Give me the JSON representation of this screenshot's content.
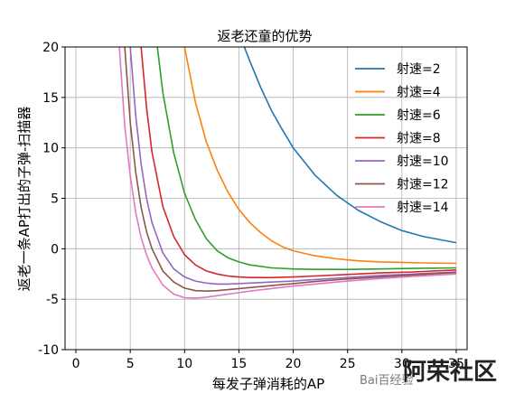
{
  "chart_data": {
    "type": "line",
    "title": "返老还童的优势",
    "xlabel": "每发子弹消耗的AP",
    "ylabel": "返老一条AP打出的子弹-扫描器",
    "xlim": [
      -1,
      36
    ],
    "ylim": [
      -10,
      20
    ],
    "xticks": [
      0,
      5,
      10,
      15,
      20,
      25,
      30,
      35
    ],
    "yticks": [
      -10,
      -5,
      0,
      5,
      10,
      15,
      20
    ],
    "grid": true,
    "legend_position": "top-right",
    "series": [
      {
        "name": "射速=2",
        "color": "#1f77b4",
        "x": [
          15.5,
          16,
          17,
          18,
          19,
          20,
          22,
          24,
          26,
          28,
          30,
          32,
          35
        ],
        "y": [
          20.0,
          18.6,
          16.0,
          13.7,
          11.8,
          10.0,
          7.3,
          5.3,
          3.8,
          2.7,
          1.8,
          1.2,
          0.6
        ]
      },
      {
        "name": "射速=4",
        "color": "#ff7f0e",
        "x": [
          10,
          11,
          12,
          13,
          14,
          15,
          16,
          17,
          18,
          19,
          20,
          22,
          24,
          26,
          28,
          30,
          32,
          35
        ],
        "y": [
          20.0,
          14.5,
          10.6,
          7.8,
          5.6,
          3.9,
          2.6,
          1.6,
          0.8,
          0.2,
          -0.2,
          -0.7,
          -1.0,
          -1.2,
          -1.3,
          -1.35,
          -1.4,
          -1.45
        ]
      },
      {
        "name": "射速=6",
        "color": "#2ca02c",
        "x": [
          7.5,
          8,
          9,
          10,
          11,
          12,
          13,
          14,
          15,
          16,
          18,
          20,
          22,
          25,
          28,
          31,
          35
        ],
        "y": [
          20.0,
          15.5,
          9.5,
          5.5,
          2.9,
          1.0,
          -0.2,
          -0.9,
          -1.3,
          -1.6,
          -1.9,
          -2.0,
          -2.05,
          -2.05,
          -2.0,
          -1.95,
          -1.9
        ]
      },
      {
        "name": "射速=8",
        "color": "#d62728",
        "x": [
          6,
          6.5,
          7,
          8,
          9,
          10,
          11,
          12,
          13,
          14,
          15,
          16,
          18,
          20,
          22,
          25,
          28,
          31,
          35
        ],
        "y": [
          20.0,
          14.0,
          9.6,
          4.2,
          1.2,
          -0.6,
          -1.6,
          -2.2,
          -2.5,
          -2.7,
          -2.8,
          -2.85,
          -2.85,
          -2.8,
          -2.7,
          -2.55,
          -2.4,
          -2.3,
          -2.1
        ]
      },
      {
        "name": "射速=10",
        "color": "#9467bd",
        "x": [
          5,
          5.5,
          6,
          6.5,
          7,
          8,
          9,
          10,
          11,
          12,
          13,
          14,
          15,
          16,
          18,
          20,
          22,
          25,
          28,
          31,
          35
        ],
        "y": [
          20.0,
          13.2,
          8.4,
          5.0,
          2.6,
          -0.4,
          -2.0,
          -2.8,
          -3.2,
          -3.4,
          -3.5,
          -3.5,
          -3.45,
          -3.4,
          -3.3,
          -3.2,
          -3.05,
          -2.85,
          -2.65,
          -2.5,
          -2.3
        ]
      },
      {
        "name": "射速=12",
        "color": "#8c564b",
        "x": [
          4.5,
          5,
          5.5,
          6,
          6.5,
          7,
          8,
          9,
          10,
          11,
          12,
          13,
          14,
          16,
          18,
          20,
          22,
          25,
          28,
          31,
          35
        ],
        "y": [
          20.0,
          12.5,
          7.6,
          4.1,
          1.7,
          0.0,
          -2.2,
          -3.3,
          -3.9,
          -4.15,
          -4.2,
          -4.15,
          -4.05,
          -3.85,
          -3.65,
          -3.45,
          -3.25,
          -3.0,
          -2.8,
          -2.6,
          -2.35
        ]
      },
      {
        "name": "射速=14",
        "color": "#e377c2",
        "x": [
          4,
          4.5,
          5,
          5.5,
          6,
          6.5,
          7,
          8,
          9,
          10,
          11,
          12,
          13,
          14,
          16,
          18,
          20,
          22,
          25,
          28,
          31,
          35
        ],
        "y": [
          20.0,
          12.2,
          7.2,
          3.6,
          1.1,
          -0.6,
          -1.9,
          -3.6,
          -4.5,
          -4.85,
          -4.9,
          -4.8,
          -4.65,
          -4.5,
          -4.2,
          -3.95,
          -3.7,
          -3.5,
          -3.2,
          -2.95,
          -2.75,
          -2.5
        ]
      }
    ]
  },
  "watermark": {
    "baidu_text": "Bai百经验",
    "site_text": "阿荣社区"
  }
}
